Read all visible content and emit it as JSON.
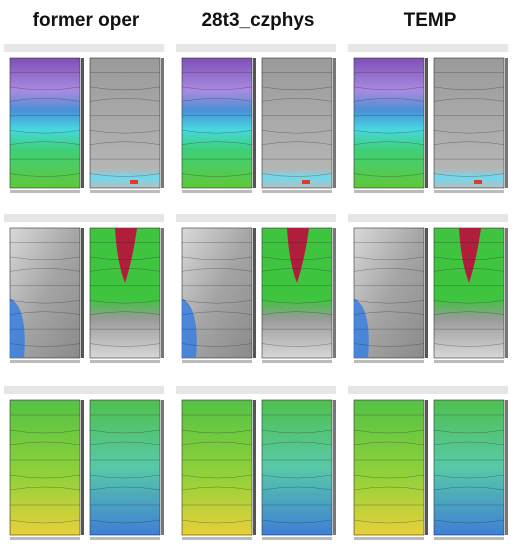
{
  "header": {
    "columns": [
      "former oper",
      "28t3_czphys",
      "TEMP"
    ]
  }
}
